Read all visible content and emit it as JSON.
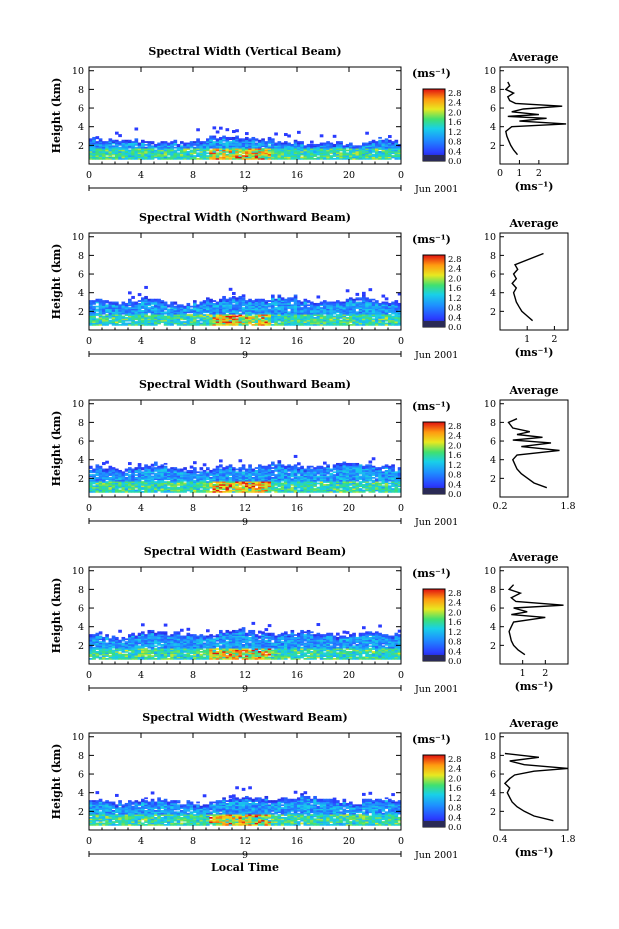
{
  "chart_data": [
    {
      "type": "heatmap",
      "title": "Spectral Width (Vertical Beam)",
      "ylabel": "Height (km)",
      "y_ticks": [
        "10",
        "8",
        "6",
        "4",
        "2"
      ],
      "x_ticks": [
        "0",
        "4",
        "8",
        "12",
        "16",
        "20",
        "0"
      ],
      "date_label": "Jun 2001",
      "day_marker": "9",
      "colorbar": {
        "unit": "(ms⁻¹)",
        "ticks": [
          "2.8",
          "2.4",
          "2.0",
          "1.6",
          "1.2",
          "0.8",
          "0.4",
          "0.0"
        ]
      },
      "echo_top_km": [
        2.8,
        2.6,
        2.5,
        2.6,
        2.7,
        2.5,
        2.4,
        2.5,
        2.7,
        2.9,
        3.1,
        2.9,
        2.8,
        2.7,
        2.6,
        2.5,
        2.3,
        2.2,
        2.4,
        2.3,
        2.2,
        2.5,
        2.7,
        2.4
      ],
      "average_profile": {
        "title": "Average",
        "xlabel": "(ms⁻¹)",
        "x_ticks": [
          "0",
          "1",
          "2"
        ],
        "xlim": [
          0,
          3.5
        ],
        "height_km": [
          1.0,
          1.5,
          2.0,
          2.5,
          3.0,
          3.5,
          4.0,
          4.3,
          4.6,
          4.9,
          5.1,
          5.3,
          5.6,
          5.9,
          6.2,
          6.5,
          6.8,
          7.2,
          7.6,
          8.0,
          8.4,
          8.8
        ],
        "width": [
          0.9,
          0.7,
          0.55,
          0.45,
          0.35,
          0.3,
          0.6,
          3.4,
          1.0,
          2.4,
          0.4,
          2.0,
          0.6,
          1.2,
          3.2,
          0.8,
          0.5,
          0.4,
          0.7,
          0.3,
          0.5,
          0.4
        ]
      }
    },
    {
      "type": "heatmap",
      "title": "Spectral Width (Northward Beam)",
      "ylabel": "Height (km)",
      "y_ticks": [
        "10",
        "8",
        "6",
        "4",
        "2"
      ],
      "x_ticks": [
        "0",
        "4",
        "8",
        "12",
        "16",
        "20",
        "0"
      ],
      "date_label": "Jun 2001",
      "day_marker": "9",
      "colorbar": {
        "unit": "(ms⁻¹)",
        "ticks": [
          "2.8",
          "2.4",
          "2.0",
          "1.6",
          "1.2",
          "0.8",
          "0.4",
          "0.0"
        ]
      },
      "echo_top_km": [
        3.2,
        3.0,
        3.1,
        3.3,
        3.5,
        3.2,
        3.0,
        2.9,
        3.1,
        3.4,
        3.6,
        3.5,
        3.3,
        3.4,
        3.6,
        3.7,
        3.4,
        3.2,
        3.1,
        3.3,
        3.5,
        3.6,
        3.3,
        3.2
      ],
      "average_profile": {
        "title": "Average",
        "xlabel": "(ms⁻¹)",
        "x_ticks": [
          "1",
          "2"
        ],
        "xlim": [
          0,
          2.5
        ],
        "height_km": [
          1.0,
          1.5,
          2.0,
          2.5,
          3.0,
          3.5,
          4.0,
          4.5,
          5.0,
          5.5,
          6.0,
          6.5,
          7.0,
          8.2
        ],
        "width": [
          1.2,
          1.0,
          0.8,
          0.7,
          0.6,
          0.55,
          0.5,
          0.6,
          0.45,
          0.6,
          0.5,
          0.65,
          0.55,
          1.6
        ]
      }
    },
    {
      "type": "heatmap",
      "title": "Spectral Width (Southward Beam)",
      "ylabel": "Height (km)",
      "y_ticks": [
        "10",
        "8",
        "6",
        "4",
        "2"
      ],
      "x_ticks": [
        "0",
        "4",
        "8",
        "12",
        "16",
        "20",
        "0"
      ],
      "date_label": "Jun 2001",
      "day_marker": "9",
      "colorbar": {
        "unit": "(ms⁻¹)",
        "ticks": [
          "2.8",
          "2.4",
          "2.0",
          "1.6",
          "1.2",
          "0.8",
          "0.4",
          "0.0"
        ]
      },
      "echo_top_km": [
        3.3,
        3.2,
        3.0,
        3.2,
        3.4,
        3.6,
        3.3,
        3.1,
        3.0,
        3.2,
        3.5,
        3.4,
        3.3,
        3.6,
        3.8,
        3.5,
        3.2,
        3.3,
        3.4,
        3.7,
        3.9,
        3.6,
        3.4,
        3.3
      ],
      "average_profile": {
        "title": "Average",
        "xlabel": "",
        "x_ticks": [
          "0.2",
          "1.8"
        ],
        "xlim": [
          0.2,
          1.8
        ],
        "height_km": [
          1.0,
          1.5,
          2.0,
          2.5,
          3.0,
          3.5,
          4.0,
          4.5,
          5.0,
          5.4,
          5.8,
          6.1,
          6.4,
          6.7,
          7.0,
          7.4,
          8.0,
          8.4
        ],
        "width": [
          1.3,
          1.0,
          0.85,
          0.7,
          0.6,
          0.55,
          0.5,
          0.6,
          1.6,
          0.7,
          1.4,
          0.5,
          1.2,
          0.6,
          0.9,
          0.5,
          0.4,
          0.6
        ]
      }
    },
    {
      "type": "heatmap",
      "title": "Spectral Width (Eastward Beam)",
      "ylabel": "Height (km)",
      "y_ticks": [
        "10",
        "8",
        "6",
        "4",
        "2"
      ],
      "x_ticks": [
        "0",
        "4",
        "8",
        "12",
        "16",
        "20",
        "0"
      ],
      "date_label": "Jun 2001",
      "day_marker": "9",
      "colorbar": {
        "unit": "(ms⁻¹)",
        "ticks": [
          "2.8",
          "2.4",
          "2.0",
          "1.6",
          "1.2",
          "0.8",
          "0.4",
          "0.0"
        ]
      },
      "echo_top_km": [
        3.4,
        3.1,
        3.0,
        3.2,
        3.5,
        3.6,
        3.4,
        3.2,
        3.1,
        3.3,
        3.6,
        3.8,
        3.5,
        3.4,
        3.3,
        3.5,
        3.6,
        3.4,
        3.2,
        3.1,
        3.3,
        3.5,
        3.4,
        3.2
      ],
      "average_profile": {
        "title": "Average",
        "xlabel": "(ms⁻¹)",
        "x_ticks": [
          "1",
          "2"
        ],
        "xlim": [
          0,
          3.0
        ],
        "height_km": [
          1.0,
          1.5,
          2.0,
          2.5,
          3.0,
          3.5,
          4.0,
          4.5,
          5.0,
          5.3,
          5.6,
          6.0,
          6.3,
          6.7,
          7.1,
          7.6,
          8.0,
          8.5
        ],
        "width": [
          1.1,
          0.8,
          0.6,
          0.5,
          0.45,
          0.4,
          0.5,
          0.6,
          2.0,
          0.5,
          1.2,
          0.6,
          2.8,
          0.7,
          0.5,
          0.9,
          0.4,
          0.6
        ]
      }
    },
    {
      "type": "heatmap",
      "title": "Spectral Width (Westward Beam)",
      "ylabel": "Height (km)",
      "y_ticks": [
        "10",
        "8",
        "6",
        "4",
        "2"
      ],
      "x_ticks": [
        "0",
        "4",
        "8",
        "12",
        "16",
        "20",
        "0"
      ],
      "date_label": "Jun 2001",
      "day_marker": "9",
      "xlabel": "Local Time",
      "colorbar": {
        "unit": "(ms⁻¹)",
        "ticks": [
          "2.8",
          "2.4",
          "2.0",
          "1.6",
          "1.2",
          "0.8",
          "0.4",
          "0.0"
        ]
      },
      "echo_top_km": [
        3.3,
        3.2,
        3.0,
        3.1,
        3.3,
        3.4,
        3.2,
        3.0,
        2.9,
        3.1,
        3.4,
        3.5,
        3.6,
        3.5,
        3.4,
        3.6,
        3.8,
        3.5,
        3.3,
        3.2,
        3.1,
        3.3,
        3.4,
        3.2
      ],
      "average_profile": {
        "title": "Average",
        "xlabel": "(ms⁻¹)",
        "x_ticks": [
          "0.4",
          "1.8"
        ],
        "xlim": [
          0.4,
          1.8
        ],
        "height_km": [
          1.0,
          1.5,
          2.0,
          2.5,
          3.0,
          3.5,
          4.0,
          4.5,
          5.0,
          5.5,
          5.9,
          6.3,
          6.6,
          7.0,
          7.4,
          7.8,
          8.2
        ],
        "width": [
          1.5,
          1.1,
          0.9,
          0.75,
          0.65,
          0.6,
          0.55,
          0.6,
          0.5,
          0.6,
          0.7,
          1.1,
          1.8,
          0.9,
          0.6,
          1.2,
          0.5
        ]
      }
    }
  ]
}
